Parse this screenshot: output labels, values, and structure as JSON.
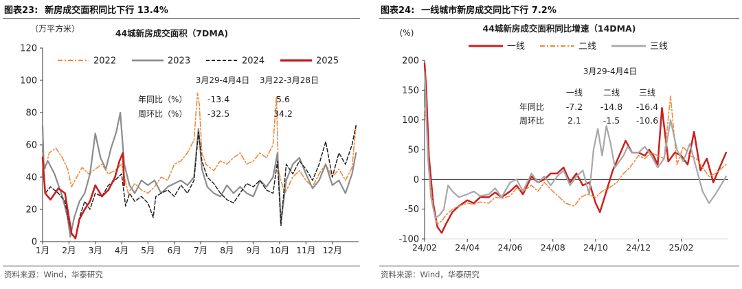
{
  "left": {
    "fig_no": "图表23:",
    "fig_title": "新房成交面积同比下行 13.4%",
    "source": "资料来源：Wind，华泰研究",
    "chart_data": {
      "type": "line",
      "title": "44城新房成交面积（7DMA)",
      "unit": "（万平方米）",
      "ylim": [
        0,
        120
      ],
      "yticks": [
        0,
        20,
        40,
        60,
        80,
        100,
        120
      ],
      "xlim": [
        1,
        13
      ],
      "xticks": [
        {
          "x": 1,
          "label": "1月"
        },
        {
          "x": 2,
          "label": "2月"
        },
        {
          "x": 3,
          "label": "3月"
        },
        {
          "x": 4,
          "label": "4月"
        },
        {
          "x": 5,
          "label": "5月"
        },
        {
          "x": 6,
          "label": "6月"
        },
        {
          "x": 7,
          "label": "7月"
        },
        {
          "x": 8,
          "label": "8月"
        },
        {
          "x": 9,
          "label": "9月"
        },
        {
          "x": 10,
          "label": "10月"
        },
        {
          "x": 11,
          "label": "11月"
        },
        {
          "x": 12,
          "label": "12月"
        }
      ],
      "legend_position": "top",
      "series": [
        {
          "name": "2022",
          "color": "#f08a3c",
          "dash": "dashdot",
          "width": 1.6,
          "x": [
            1,
            1.1,
            1.25,
            1.5,
            1.75,
            1.95,
            2.1,
            2.3,
            2.5,
            2.75,
            3,
            3.25,
            3.5,
            3.75,
            4,
            4.25,
            4.5,
            4.75,
            5,
            5.25,
            5.5,
            5.75,
            6,
            6.25,
            6.5,
            6.75,
            6.88,
            6.95,
            7.05,
            7.2,
            7.5,
            7.75,
            8,
            8.25,
            8.5,
            8.75,
            9,
            9.25,
            9.5,
            9.75,
            9.88,
            9.95,
            10.05,
            10.2,
            10.5,
            10.75,
            11,
            11.25,
            11.5,
            11.75,
            12,
            12.25,
            12.5,
            12.75,
            12.9
          ],
          "y": [
            55,
            45,
            55,
            58,
            52,
            45,
            34,
            40,
            46,
            42,
            45,
            48,
            42,
            44,
            48,
            30,
            36,
            32,
            30,
            34,
            40,
            38,
            48,
            50,
            55,
            63,
            92,
            85,
            55,
            48,
            44,
            50,
            48,
            52,
            55,
            48,
            50,
            55,
            52,
            60,
            90,
            45,
            38,
            30,
            40,
            44,
            38,
            34,
            42,
            48,
            40,
            45,
            38,
            46,
            72
          ]
        },
        {
          "name": "2023",
          "color": "#8c8c8c",
          "dash": "solid",
          "width": 2.2,
          "x": [
            1,
            1.05,
            1.2,
            1.45,
            1.75,
            1.95,
            2.05,
            2.2,
            2.4,
            2.6,
            2.8,
            3,
            3.2,
            3.4,
            3.6,
            3.8,
            3.95,
            4.1,
            4.3,
            4.5,
            4.75,
            5,
            5.25,
            5.5,
            5.75,
            6,
            6.25,
            6.5,
            6.75,
            6.92,
            7.05,
            7.25,
            7.5,
            7.75,
            8,
            8.25,
            8.5,
            8.75,
            9,
            9.25,
            9.5,
            9.75,
            9.92,
            10.05,
            10.25,
            10.5,
            10.75,
            11,
            11.25,
            11.5,
            11.75,
            12,
            12.25,
            12.5,
            12.75,
            12.9
          ],
          "y": [
            72,
            45,
            50,
            42,
            28,
            15,
            3,
            15,
            25,
            30,
            42,
            67,
            52,
            45,
            58,
            68,
            80,
            48,
            35,
            30,
            38,
            35,
            38,
            30,
            34,
            36,
            38,
            35,
            40,
            70,
            45,
            34,
            30,
            28,
            35,
            30,
            34,
            30,
            28,
            38,
            34,
            40,
            55,
            12,
            38,
            48,
            52,
            42,
            33,
            38,
            48,
            35,
            38,
            30,
            42,
            55
          ]
        },
        {
          "name": "2024",
          "color": "#222222",
          "dash": "dashed",
          "width": 1.5,
          "x": [
            1,
            1.1,
            1.3,
            1.6,
            1.85,
            2,
            2.1,
            2.25,
            2.4,
            2.6,
            2.8,
            3,
            3.25,
            3.5,
            3.75,
            4,
            4.15,
            4.3,
            4.5,
            4.75,
            5,
            5.2,
            5.3,
            5.5,
            5.75,
            6,
            6.25,
            6.5,
            6.75,
            6.92,
            7.05,
            7.25,
            7.5,
            7.75,
            8,
            8.25,
            8.5,
            8.75,
            9,
            9.25,
            9.5,
            9.75,
            9.92,
            10.05,
            10.25,
            10.5,
            10.75,
            11,
            11.25,
            11.5,
            11.75,
            12,
            12.25,
            12.5,
            12.75,
            12.9
          ],
          "y": [
            50,
            30,
            34,
            30,
            25,
            12,
            5,
            3,
            15,
            25,
            20,
            30,
            28,
            35,
            38,
            42,
            22,
            30,
            25,
            28,
            24,
            15,
            28,
            30,
            32,
            28,
            35,
            30,
            38,
            68,
            50,
            40,
            36,
            30,
            26,
            24,
            30,
            36,
            34,
            38,
            32,
            30,
            50,
            10,
            48,
            42,
            50,
            45,
            38,
            48,
            62,
            40,
            55,
            48,
            60,
            72
          ]
        },
        {
          "name": "2025",
          "color": "#cc1f1f",
          "dash": "solid",
          "width": 2.6,
          "x": [
            1,
            1.1,
            1.3,
            1.6,
            1.85,
            2,
            2.1,
            2.25,
            2.4,
            2.6,
            2.8,
            3,
            3.25,
            3.5,
            3.75,
            3.92,
            4.05,
            4.1
          ],
          "y": [
            52,
            30,
            26,
            33,
            30,
            15,
            5,
            2,
            14,
            20,
            25,
            35,
            28,
            32,
            40,
            50,
            55,
            35
          ]
        }
      ],
      "annotations": {
        "col1_header": "3月29-4月4日",
        "col2_header": "3月22-3月28日",
        "rows": [
          {
            "label": "年同比（%）",
            "v1": "-13.4",
            "v2": "5.6"
          },
          {
            "label": "周环比（%）",
            "v1": "-32.5",
            "v2": "34.2"
          }
        ]
      }
    }
  },
  "right": {
    "fig_no": "图表24:",
    "fig_title": "一线城市新房成交同比下行 7.2%",
    "source": "资料来源：Wind，华泰研究",
    "chart_data": {
      "type": "line",
      "title": "44城新房成交面积同比增速（14DMA)",
      "unit": "(%)",
      "ylim": [
        -100,
        200
      ],
      "yticks": [
        -100,
        -50,
        0,
        50,
        100,
        150,
        200
      ],
      "xlim": [
        0,
        14.2
      ],
      "xticks": [
        {
          "x": 0,
          "label": "24/02"
        },
        {
          "x": 2,
          "label": "24/04"
        },
        {
          "x": 4,
          "label": "24/06"
        },
        {
          "x": 6,
          "label": "24/08"
        },
        {
          "x": 8,
          "label": "24/10"
        },
        {
          "x": 10,
          "label": "24/12"
        },
        {
          "x": 12,
          "label": "25/02"
        }
      ],
      "legend_position": "top",
      "series": [
        {
          "name": "一线",
          "color": "#cc1f1f",
          "dash": "solid",
          "width": 2.5,
          "x": [
            0,
            0.08,
            0.2,
            0.4,
            0.6,
            0.8,
            1,
            1.3,
            1.6,
            2,
            2.3,
            2.6,
            3,
            3.3,
            3.6,
            4,
            4.3,
            4.6,
            5,
            5.3,
            5.6,
            5.9,
            6.2,
            6.5,
            6.8,
            7.1,
            7.4,
            7.7,
            8,
            8.2,
            8.5,
            8.8,
            9.1,
            9.4,
            9.7,
            10,
            10.3,
            10.5,
            10.7,
            10.9,
            11.1,
            11.4,
            11.7,
            12,
            12.3,
            12.6,
            12.9,
            13.2,
            13.5,
            13.8,
            14.1
          ],
          "y": [
            195,
            150,
            40,
            -40,
            -80,
            -90,
            -75,
            -55,
            -45,
            -35,
            -40,
            -30,
            -30,
            -22,
            -30,
            -20,
            -10,
            -25,
            5,
            -5,
            0,
            10,
            10,
            20,
            -5,
            10,
            -10,
            -5,
            -40,
            -55,
            -20,
            15,
            40,
            65,
            45,
            45,
            40,
            50,
            40,
            25,
            120,
            30,
            45,
            40,
            25,
            80,
            15,
            35,
            -5,
            20,
            45
          ]
        },
        {
          "name": "二线",
          "color": "#f08a3c",
          "dash": "dashdot",
          "width": 1.6,
          "x": [
            0,
            0.08,
            0.2,
            0.4,
            0.6,
            0.8,
            1,
            1.3,
            1.6,
            2,
            2.3,
            2.6,
            3,
            3.3,
            3.6,
            4,
            4.3,
            4.6,
            5,
            5.3,
            5.6,
            6,
            6.3,
            6.6,
            7,
            7.3,
            7.6,
            8,
            8.3,
            8.6,
            9,
            9.3,
            9.6,
            10,
            10.3,
            10.6,
            10.9,
            11.2,
            11.5,
            11.8,
            12.1,
            12.4,
            12.7,
            13,
            13.3,
            13.6,
            14.1
          ],
          "y": [
            120,
            100,
            20,
            -50,
            -75,
            -70,
            -60,
            -50,
            -45,
            -40,
            -42,
            -38,
            -40,
            -30,
            -32,
            -28,
            -15,
            -20,
            -10,
            -20,
            -5,
            -20,
            -30,
            -40,
            -45,
            -30,
            -25,
            -30,
            -20,
            -15,
            -5,
            10,
            20,
            40,
            35,
            45,
            40,
            35,
            140,
            25,
            55,
            40,
            35,
            20,
            5,
            10,
            25
          ]
        },
        {
          "name": "三线",
          "color": "#a8a8a8",
          "dash": "solid",
          "width": 2.2,
          "x": [
            0,
            0.06,
            0.15,
            0.3,
            0.5,
            0.7,
            0.9,
            1.1,
            1.3,
            1.6,
            2,
            2.3,
            2.6,
            3,
            3.3,
            3.6,
            4,
            4.3,
            4.6,
            5,
            5.3,
            5.6,
            5.9,
            6.2,
            6.5,
            6.8,
            7.1,
            7.4,
            7.7,
            7.9,
            8.1,
            8.3,
            8.5,
            8.7,
            8.9,
            9.1,
            9.3,
            9.5,
            9.7,
            10,
            10.3,
            10.6,
            10.9,
            11.2,
            11.5,
            11.8,
            12.1,
            12.4,
            12.7,
            13,
            13.3,
            13.6,
            14.1
          ],
          "y": [
            180,
            130,
            40,
            -30,
            -65,
            -60,
            -50,
            -10,
            -20,
            -30,
            -25,
            -20,
            -28,
            -25,
            -15,
            -30,
            -5,
            0,
            -20,
            10,
            -5,
            5,
            -10,
            5,
            15,
            -10,
            5,
            15,
            -25,
            50,
            85,
            40,
            90,
            60,
            20,
            30,
            40,
            55,
            45,
            45,
            55,
            40,
            20,
            35,
            100,
            50,
            30,
            60,
            20,
            -20,
            -40,
            -25,
            5
          ]
        }
      ],
      "annotations": {
        "header": "3月29-4月4日",
        "cols": [
          "一线",
          "二线",
          "三线"
        ],
        "rows": [
          {
            "label": "年同比",
            "values": [
              "-7.2",
              "-14.8",
              "-16.4"
            ]
          },
          {
            "label": "周环比",
            "values": [
              "2.1",
              "-1.5",
              "-10.6"
            ]
          }
        ]
      }
    }
  }
}
